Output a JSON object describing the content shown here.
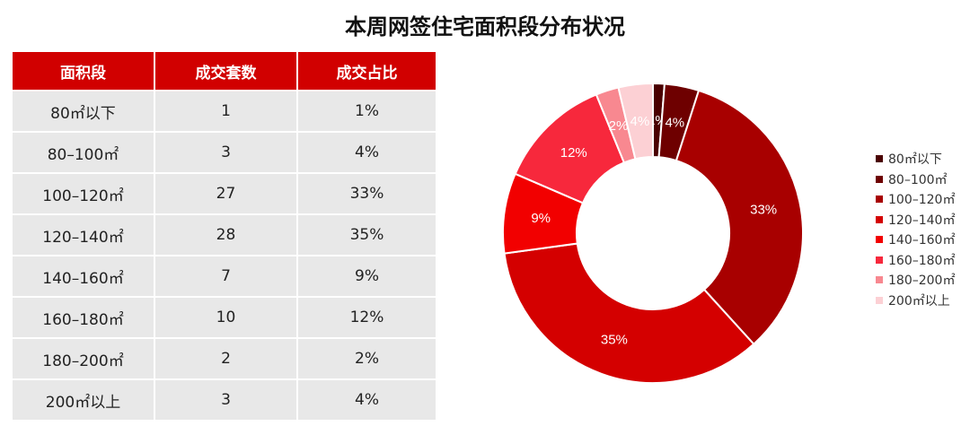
{
  "title": "本周网签住宅面积段分布状况",
  "table": {
    "headers": [
      "面积段",
      "成交套数",
      "成交占比"
    ],
    "rows": [
      [
        "80㎡以下",
        "1",
        "1%"
      ],
      [
        "80–100㎡",
        "3",
        "4%"
      ],
      [
        "100–120㎡",
        "27",
        "33%"
      ],
      [
        "120–140㎡",
        "28",
        "35%"
      ],
      [
        "140–160㎡",
        "7",
        "9%"
      ],
      [
        "160–180㎡",
        "10",
        "12%"
      ],
      [
        "180–200㎡",
        "2",
        "2%"
      ],
      [
        "200㎡以上",
        "3",
        "4%"
      ]
    ]
  },
  "legend": [
    {
      "label": "80㎡以下",
      "color": "#4a0000"
    },
    {
      "label": "80–100㎡",
      "color": "#6e0000"
    },
    {
      "label": "100–120㎡",
      "color": "#a80000"
    },
    {
      "label": "120–140㎡",
      "color": "#d40000"
    },
    {
      "label": "140–160㎡",
      "color": "#f20000"
    },
    {
      "label": "160–180㎡",
      "color": "#f7283c"
    },
    {
      "label": "180–200㎡",
      "color": "#f88890"
    },
    {
      "label": "200㎡以上",
      "color": "#fcd0d4"
    }
  ],
  "chart_data": {
    "type": "pie",
    "subtype": "donut",
    "title": "本周网签住宅面积段分布状况",
    "categories": [
      "80㎡以下",
      "80–100㎡",
      "100–120㎡",
      "120–140㎡",
      "140–160㎡",
      "160–180㎡",
      "180–200㎡",
      "200㎡以上"
    ],
    "values": [
      1,
      3,
      27,
      28,
      7,
      10,
      2,
      3
    ],
    "percent_labels": [
      "1%",
      "4%",
      "33%",
      "35%",
      "9%",
      "12%",
      "2%",
      "4%"
    ],
    "colors": [
      "#4a0000",
      "#6e0000",
      "#a80000",
      "#d40000",
      "#f20000",
      "#f7283c",
      "#f88890",
      "#fcd0d4"
    ],
    "legend_position": "right",
    "start_angle": "top, clockwise"
  }
}
